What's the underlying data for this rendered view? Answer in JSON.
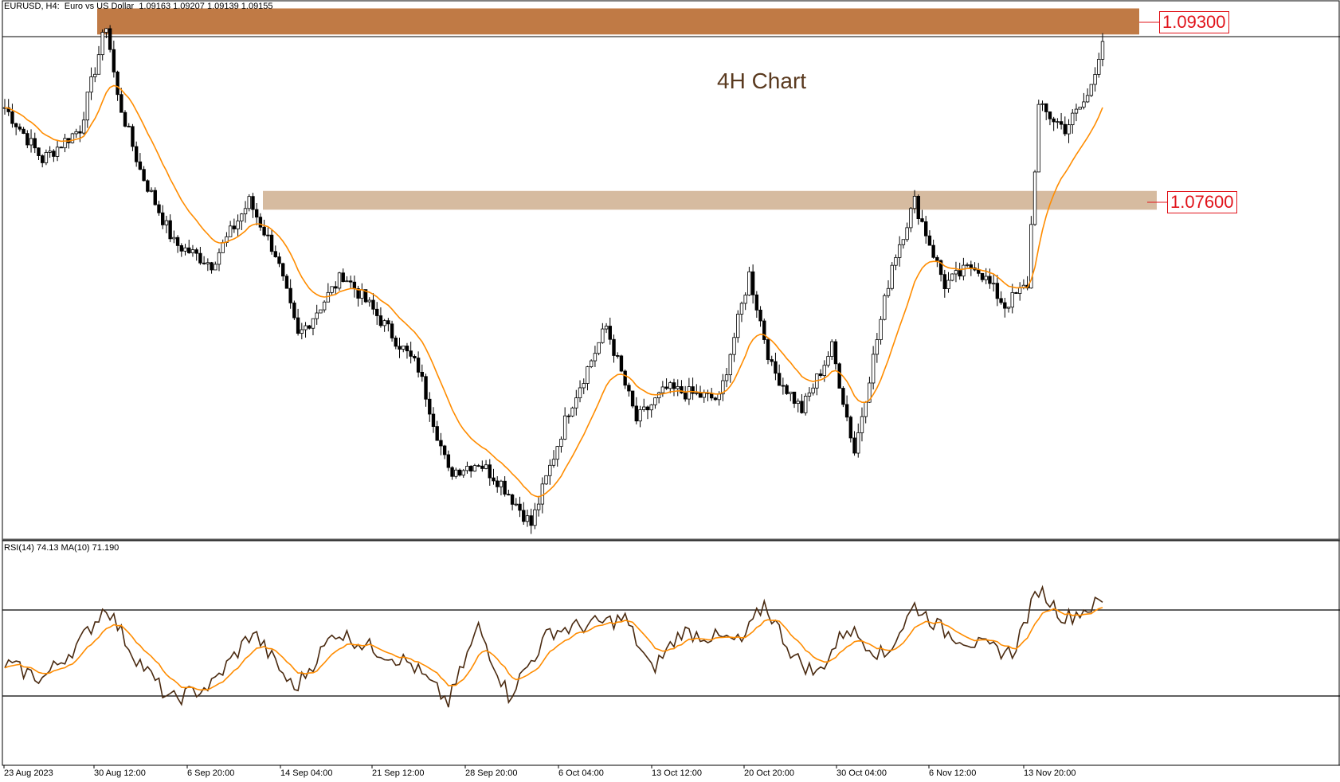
{
  "header": {
    "symbol_info": "EURUSD, H4:  Euro vs US Dollar  1.09163 1.09207 1.09139 1.09155"
  },
  "title": "4H Chart",
  "levels": [
    {
      "label": "1.09300",
      "color": "#c07a45"
    },
    {
      "label": "1.07600",
      "color": "#d6bba0"
    }
  ],
  "rsi_panel": {
    "info": "RSI(14) 74.13 MA(10) 71.190"
  },
  "colors": {
    "candle": "#000000",
    "ma": "#ff8c00",
    "rsi": "#4a2a10",
    "rsi_ma": "#ff8c00",
    "resistance_zone": "#c07a45",
    "support_zone": "#d6bba0",
    "level_label": "#e1141b"
  },
  "chart_data": {
    "type": "line",
    "x_labels": [
      "23 Aug 2023",
      "30 Aug 12:00",
      "6 Sep 20:00",
      "14 Sep 04:00",
      "21 Sep 12:00",
      "28 Sep 20:00",
      "6 Oct 04:00",
      "13 Oct 12:00",
      "20 Oct 20:00",
      "30 Oct 04:00",
      "6 Nov 12:00",
      "13 Nov 20:00"
    ],
    "price_anchors": [
      {
        "t": 0,
        "p": 1.085
      },
      {
        "t": 10,
        "p": 1.08
      },
      {
        "t": 20,
        "p": 1.083
      },
      {
        "t": 27,
        "p": 1.093
      },
      {
        "t": 30,
        "p": 1.086
      },
      {
        "t": 36,
        "p": 1.079
      },
      {
        "t": 45,
        "p": 1.072
      },
      {
        "t": 55,
        "p": 1.07
      },
      {
        "t": 65,
        "p": 1.076
      },
      {
        "t": 72,
        "p": 1.071
      },
      {
        "t": 78,
        "p": 1.063
      },
      {
        "t": 90,
        "p": 1.069
      },
      {
        "t": 97,
        "p": 1.066
      },
      {
        "t": 110,
        "p": 1.06
      },
      {
        "t": 118,
        "p": 1.05
      },
      {
        "t": 126,
        "p": 1.051
      },
      {
        "t": 132,
        "p": 1.049
      },
      {
        "t": 140,
        "p": 1.045
      },
      {
        "t": 150,
        "p": 1.056
      },
      {
        "t": 160,
        "p": 1.064
      },
      {
        "t": 168,
        "p": 1.055
      },
      {
        "t": 176,
        "p": 1.058
      },
      {
        "t": 190,
        "p": 1.057
      },
      {
        "t": 198,
        "p": 1.069
      },
      {
        "t": 204,
        "p": 1.06
      },
      {
        "t": 212,
        "p": 1.056
      },
      {
        "t": 220,
        "p": 1.062
      },
      {
        "t": 226,
        "p": 1.052
      },
      {
        "t": 236,
        "p": 1.07
      },
      {
        "t": 242,
        "p": 1.076
      },
      {
        "t": 250,
        "p": 1.068
      },
      {
        "t": 258,
        "p": 1.07
      },
      {
        "t": 266,
        "p": 1.066
      },
      {
        "t": 272,
        "p": 1.068
      },
      {
        "t": 275,
        "p": 1.085
      },
      {
        "t": 282,
        "p": 1.083
      },
      {
        "t": 288,
        "p": 1.086
      },
      {
        "t": 292,
        "p": 1.0915
      }
    ],
    "resistance_zone": [
      1.092,
      1.0945
    ],
    "support_zone": [
      1.0752,
      1.077
    ],
    "y_range": [
      1.044,
      1.095
    ],
    "rsi_levels": [
      70,
      30
    ],
    "rsi_range": [
      0,
      100
    ],
    "rsi_anchors": [
      {
        "t": 0,
        "v": 45
      },
      {
        "t": 10,
        "v": 38
      },
      {
        "t": 20,
        "v": 55
      },
      {
        "t": 27,
        "v": 72
      },
      {
        "t": 34,
        "v": 50
      },
      {
        "t": 44,
        "v": 28
      },
      {
        "t": 55,
        "v": 35
      },
      {
        "t": 66,
        "v": 60
      },
      {
        "t": 77,
        "v": 33
      },
      {
        "t": 88,
        "v": 60
      },
      {
        "t": 98,
        "v": 52
      },
      {
        "t": 108,
        "v": 45
      },
      {
        "t": 118,
        "v": 27
      },
      {
        "t": 126,
        "v": 62
      },
      {
        "t": 134,
        "v": 30
      },
      {
        "t": 145,
        "v": 60
      },
      {
        "t": 165,
        "v": 66
      },
      {
        "t": 172,
        "v": 42
      },
      {
        "t": 180,
        "v": 60
      },
      {
        "t": 196,
        "v": 55
      },
      {
        "t": 202,
        "v": 73
      },
      {
        "t": 210,
        "v": 48
      },
      {
        "t": 216,
        "v": 40
      },
      {
        "t": 224,
        "v": 62
      },
      {
        "t": 234,
        "v": 48
      },
      {
        "t": 242,
        "v": 72
      },
      {
        "t": 250,
        "v": 60
      },
      {
        "t": 260,
        "v": 53
      },
      {
        "t": 268,
        "v": 50
      },
      {
        "t": 275,
        "v": 80
      },
      {
        "t": 282,
        "v": 66
      },
      {
        "t": 292,
        "v": 74
      }
    ]
  }
}
